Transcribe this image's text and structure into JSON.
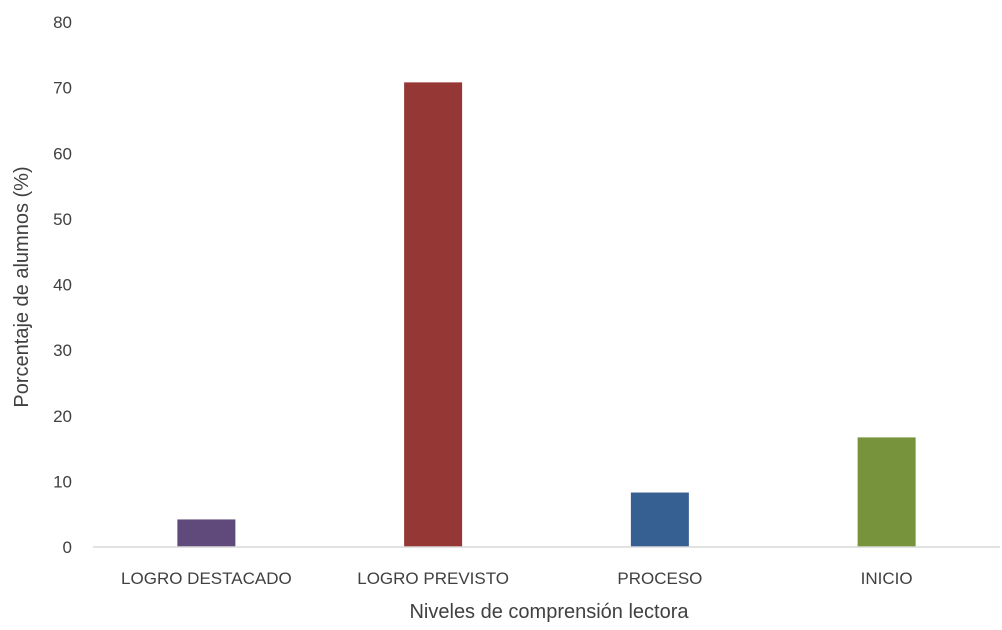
{
  "chart_data": {
    "type": "bar",
    "title": "",
    "xlabel": "Niveles de comprensión lectora",
    "ylabel": "Porcentaje de alumnos (%)",
    "categories": [
      "LOGRO DESTACADO",
      "LOGRO PREVISTO",
      "PROCESO",
      "INICIO"
    ],
    "values": [
      4.2,
      70.8,
      8.3,
      16.7
    ],
    "colors": [
      "#604A7B",
      "#953735",
      "#376092",
      "#77933C"
    ],
    "ylim": [
      0,
      80
    ],
    "yticks": [
      0,
      10,
      20,
      30,
      40,
      50,
      60,
      70,
      80
    ],
    "grid": false,
    "legend": "none"
  }
}
